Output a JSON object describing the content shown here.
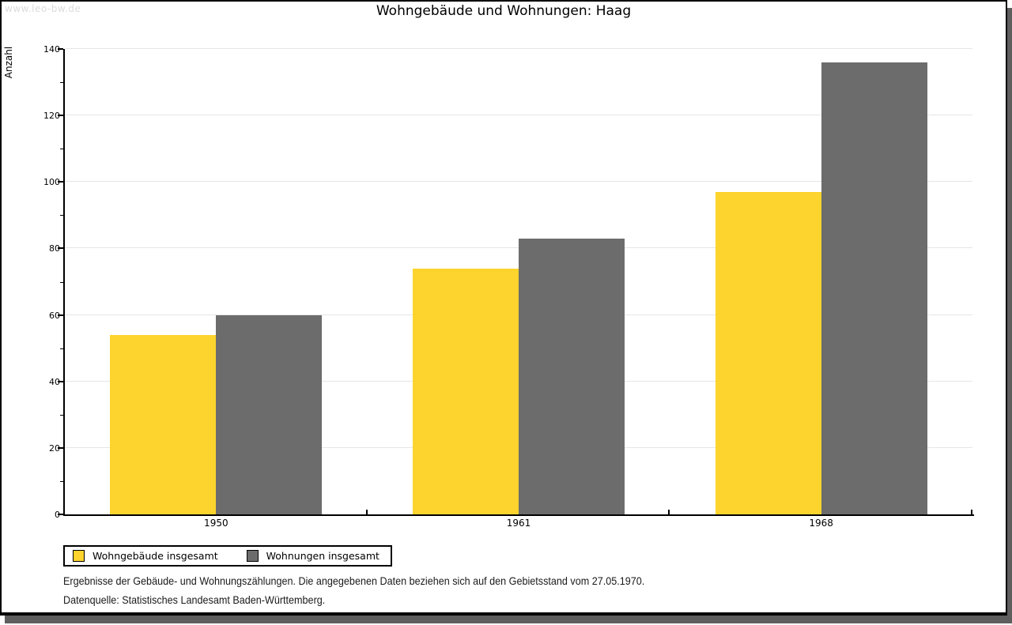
{
  "page": {
    "watermark": "www.leo-bw.de"
  },
  "chart_data": {
    "type": "bar",
    "title": "Wohngebäude und Wohnungen: Haag",
    "xlabel": "",
    "ylabel": "Anzahl",
    "categories": [
      "1950",
      "1961",
      "1968"
    ],
    "series": [
      {
        "name": "Wohngebäude insgesamt",
        "color": "#FCD42D",
        "values": [
          54,
          74,
          97
        ]
      },
      {
        "name": "Wohnungen insgesamt",
        "color": "#6C6C6C",
        "values": [
          60,
          83,
          136
        ]
      }
    ],
    "ylim": [
      0,
      140
    ],
    "yticks": [
      0,
      20,
      40,
      60,
      80,
      100,
      120,
      140
    ],
    "minor_tick_step": 10,
    "grid": "horizontal-major",
    "legend_position": "bottom-left"
  },
  "footnotes": {
    "line1": "Ergebnisse der Gebäude- und Wohnungszählungen. Die angegebenen Daten beziehen sich auf den Gebietsstand vom 27.05.1970.",
    "line2": "Datenquelle: Statistisches Landesamt Baden-Württemberg."
  },
  "colors": {
    "grid": "#E6E6E6",
    "axis": "#000000",
    "frame_shadow": "#5E5E5E",
    "watermark_text": "#DBDBDB"
  }
}
